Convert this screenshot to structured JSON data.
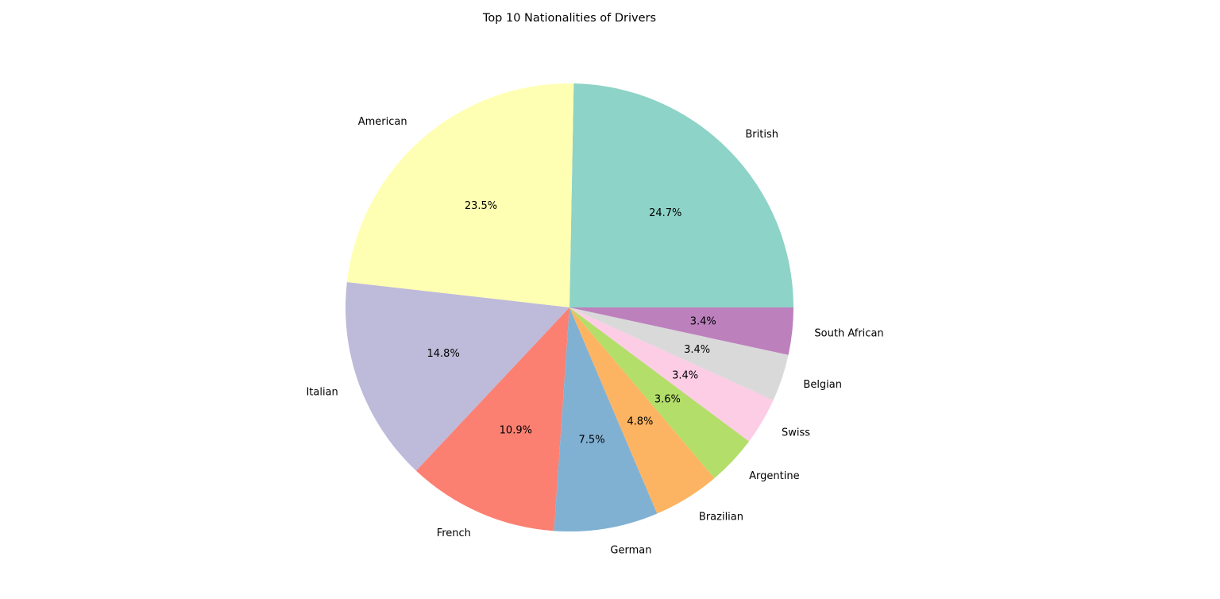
{
  "chart_data": {
    "type": "pie",
    "title": "Top 10 Nationalities of Drivers",
    "categories": [
      "British",
      "American",
      "Italian",
      "French",
      "German",
      "Brazilian",
      "Argentine",
      "Swiss",
      "Belgian",
      "South African"
    ],
    "values": [
      24.7,
      23.5,
      14.8,
      10.9,
      7.5,
      4.8,
      3.6,
      3.4,
      3.4,
      3.4
    ],
    "value_labels": [
      "24.7%",
      "23.5%",
      "14.8%",
      "10.9%",
      "7.5%",
      "4.8%",
      "3.6%",
      "3.4%",
      "3.4%",
      "3.4%"
    ],
    "colors": [
      "#8dd3c7",
      "#ffffb3",
      "#bebada",
      "#fb8072",
      "#80b1d3",
      "#fdb462",
      "#b3de69",
      "#fccde5",
      "#d9d9d9",
      "#bc80bd"
    ],
    "start_angle": 0,
    "direction": "counterclockwise",
    "legend": "none"
  }
}
